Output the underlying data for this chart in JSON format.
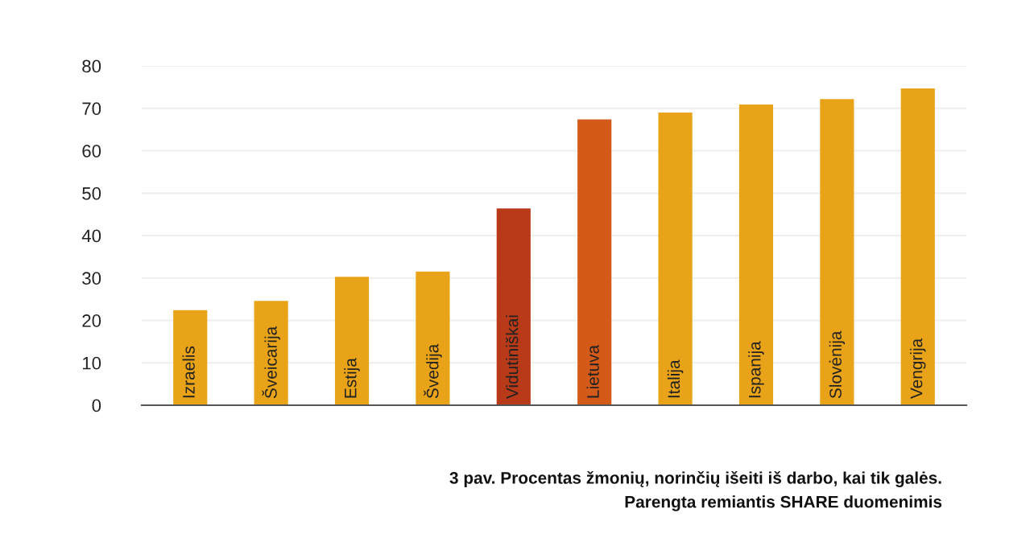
{
  "chart_data": {
    "type": "bar",
    "categories": [
      "Izraelis",
      "Šveicarija",
      "Estija",
      "Švedija",
      "Vidutiniškai",
      "Lietuva",
      "Italija",
      "Ispanija",
      "Slovėnija",
      "Vengrija"
    ],
    "values": [
      22.4,
      24.6,
      30.3,
      31.5,
      46.4,
      67.4,
      69.0,
      70.9,
      72.2,
      74.7
    ],
    "colors": [
      "#e8a318",
      "#e8a318",
      "#e8a318",
      "#e8a318",
      "#b83a18",
      "#d45a1a",
      "#e8a318",
      "#e8a318",
      "#e8a318",
      "#e8a318"
    ],
    "ylim": [
      0,
      80
    ],
    "yticks": [
      0,
      10,
      20,
      30,
      40,
      50,
      60,
      70,
      80
    ],
    "grid": "y",
    "annotations": [
      "3 pav. Procentas žmonių, norinčių išeiti iš darbo, kai tik galės.",
      "Parengta remiantis SHARE duomenimis"
    ]
  }
}
